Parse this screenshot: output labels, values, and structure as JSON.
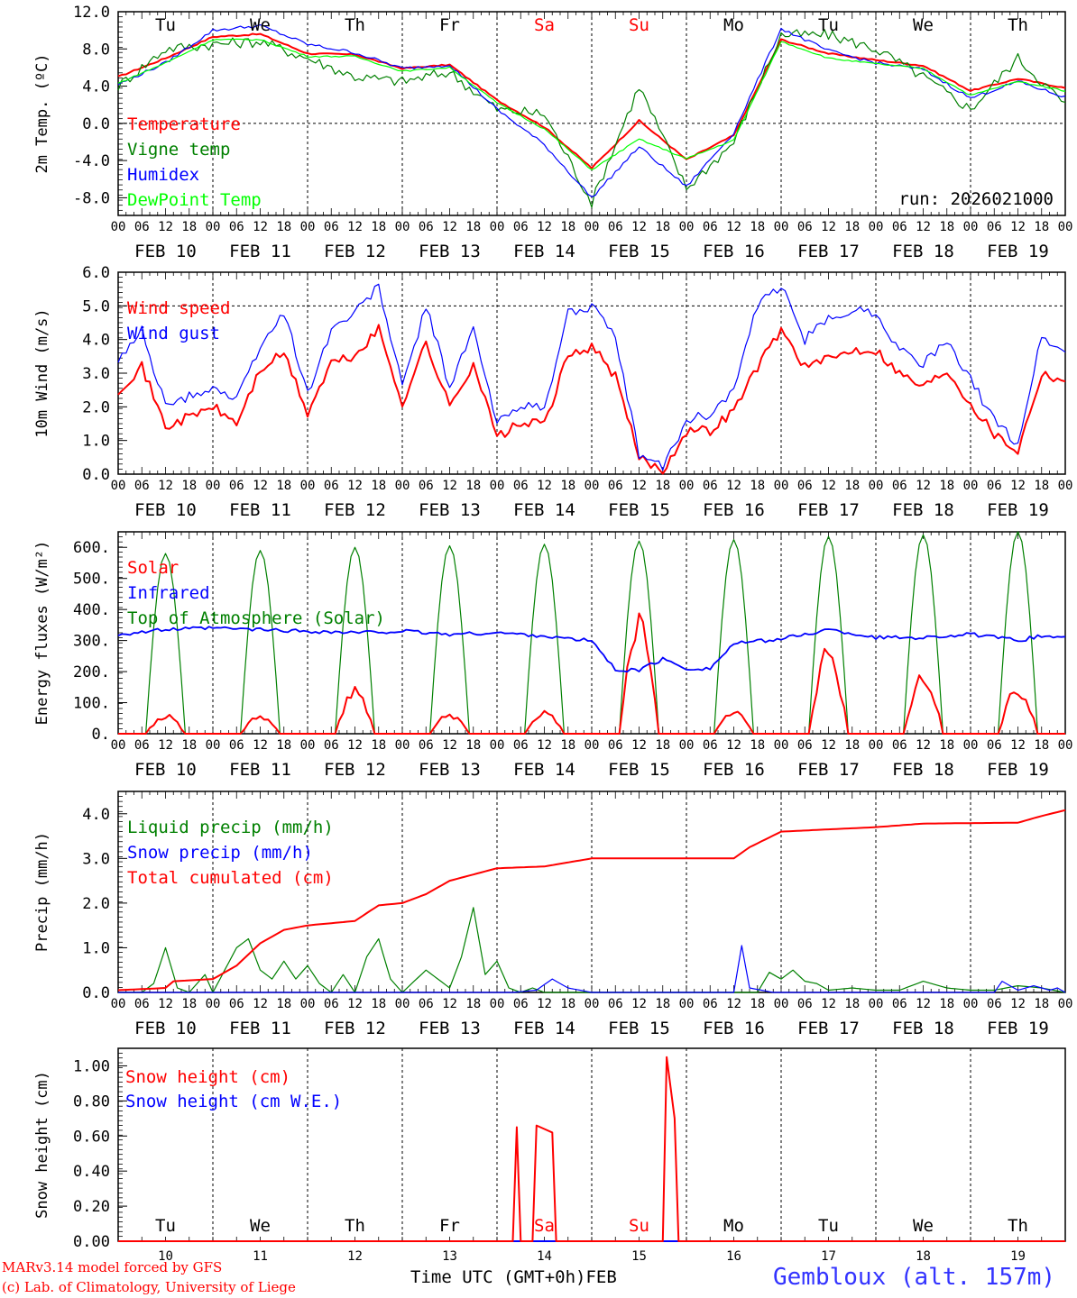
{
  "colors": {
    "red": "#ff0000",
    "green": "#008000",
    "blue": "#0000ff",
    "lightgreen": "#00ff00",
    "black": "#000000",
    "title": "#3333ff"
  },
  "axis": {
    "hour_ticks": [
      "00",
      "06",
      "12",
      "18"
    ],
    "final_hour": "00",
    "date_labels": [
      "FEB 10",
      "FEB 11",
      "FEB 12",
      "FEB 13",
      "FEB 14",
      "FEB 15",
      "FEB 16",
      "FEB 17",
      "FEB 18",
      "FEB 19"
    ],
    "day_names": [
      "Tu",
      "We",
      "Th",
      "Fr",
      "Sa",
      "Su",
      "Mo",
      "Tu",
      "We",
      "Th"
    ],
    "day_colors": [
      "black",
      "black",
      "black",
      "black",
      "red",
      "red",
      "black",
      "black",
      "black",
      "black"
    ],
    "day_numbers": [
      "10",
      "11",
      "12",
      "13",
      "14",
      "15",
      "16",
      "17",
      "18",
      "19"
    ]
  },
  "footer": {
    "model_line": "MARv3.14 model forced by GFS",
    "credit_line": "(c) Lab. of Climatology, University of Liege",
    "x_title": "Time UTC (GMT+0h)",
    "month": "FEB",
    "station": "Gembloux (alt. 157m)"
  },
  "chart_data": [
    {
      "type": "line",
      "id": "temp",
      "ylabel": "2m Temp. (ºC)",
      "ylim": [
        -9.9,
        12.0
      ],
      "yticks": [
        12.0,
        8.0,
        4.0,
        0.0,
        -4.0,
        -8.0
      ],
      "ytick_labels": [
        "12.0",
        "8.0",
        "4.0",
        "0.0",
        "-4.0",
        "-8.0"
      ],
      "dashed_at": 0.0,
      "annotation": "run: 2026021000",
      "x_hours": [
        0,
        12,
        24,
        36,
        48,
        60,
        72,
        84,
        96,
        108,
        120,
        132,
        144,
        156,
        168,
        180,
        192,
        204,
        216,
        228,
        240
      ],
      "series": [
        {
          "name": "Temperature",
          "color": "red",
          "values": [
            5.0,
            7.0,
            9.3,
            9.6,
            7.5,
            7.4,
            5.9,
            6.3,
            2.5,
            -0.4,
            -4.8,
            0.3,
            -3.9,
            -1.3,
            9.0,
            7.5,
            6.8,
            6.2,
            3.5,
            4.8,
            3.8
          ]
        },
        {
          "name": "Vigne temp",
          "color": "green",
          "values": [
            4.0,
            8.0,
            8.5,
            8.8,
            7.0,
            5.0,
            4.5,
            5.5,
            1.5,
            1.0,
            -8.5,
            4.0,
            -7.0,
            -2.0,
            9.5,
            9.5,
            8.0,
            5.0,
            1.5,
            7.0,
            2.0
          ]
        },
        {
          "name": "Humidex",
          "color": "blue",
          "values": [
            4.2,
            6.5,
            10.0,
            10.5,
            8.5,
            7.6,
            5.9,
            6.3,
            1.5,
            -2.3,
            -8.0,
            -2.5,
            -6.8,
            -1.0,
            10.2,
            7.8,
            6.5,
            5.8,
            2.7,
            4.5,
            2.8
          ]
        },
        {
          "name": "DewPoint Temp",
          "color": "lightgreen",
          "values": [
            4.3,
            6.5,
            9.0,
            9.0,
            7.2,
            7.2,
            5.6,
            6.0,
            2.2,
            -0.6,
            -5.0,
            -1.7,
            -3.8,
            -1.8,
            8.8,
            7.0,
            6.4,
            5.9,
            3.0,
            4.5,
            3.5
          ]
        }
      ]
    },
    {
      "type": "line",
      "id": "wind",
      "ylabel": "10m Wind (m/s)",
      "ylim": [
        0.0,
        6.0
      ],
      "yticks": [
        6.0,
        5.0,
        4.0,
        3.0,
        2.0,
        1.0,
        0.0
      ],
      "ytick_labels": [
        "6.0",
        "5.0",
        "4.0",
        "3.0",
        "2.0",
        "1.0",
        "0.0"
      ],
      "dashed_at": 5.0,
      "x_hours": [
        0,
        6,
        12,
        18,
        24,
        30,
        36,
        42,
        48,
        54,
        60,
        66,
        72,
        78,
        84,
        90,
        96,
        102,
        108,
        114,
        120,
        126,
        132,
        138,
        144,
        150,
        156,
        162,
        168,
        174,
        180,
        186,
        192,
        198,
        204,
        210,
        216,
        222,
        228,
        234,
        240
      ],
      "series": [
        {
          "name": "Wind speed",
          "color": "red",
          "values": [
            2.5,
            3.2,
            1.4,
            1.7,
            2.0,
            1.5,
            3.1,
            3.6,
            1.8,
            3.3,
            3.5,
            4.3,
            2.1,
            3.9,
            2.0,
            3.3,
            1.1,
            1.5,
            1.5,
            3.5,
            3.8,
            2.9,
            0.5,
            0.1,
            1.3,
            1.3,
            1.9,
            3.2,
            4.3,
            3.2,
            3.4,
            3.7,
            3.7,
            3.0,
            2.6,
            3.1,
            2.1,
            1.2,
            0.7,
            3.0,
            2.8
          ]
        },
        {
          "name": "Wind gust",
          "color": "blue",
          "values": [
            3.3,
            4.3,
            2.0,
            2.3,
            2.6,
            2.2,
            3.8,
            4.8,
            2.4,
            4.3,
            4.8,
            5.6,
            2.6,
            5.0,
            2.6,
            4.3,
            1.5,
            2.1,
            1.9,
            4.8,
            5.0,
            4.0,
            0.6,
            0.2,
            1.6,
            1.8,
            2.5,
            5.0,
            5.6,
            4.0,
            4.6,
            4.9,
            4.8,
            3.7,
            3.3,
            3.9,
            2.8,
            1.6,
            0.9,
            4.1,
            3.6
          ]
        }
      ]
    },
    {
      "type": "line",
      "id": "energy",
      "ylabel": "Energy fluxes (W/m²)",
      "ylim": [
        0,
        650
      ],
      "yticks": [
        600,
        500,
        400,
        300,
        200,
        100,
        0
      ],
      "ytick_labels": [
        "600.",
        "500.",
        "400.",
        "300.",
        "200.",
        "100.",
        "0."
      ],
      "series": [
        {
          "name": "Solar",
          "color": "red",
          "peaks": [
            65,
            65,
            155,
            70,
            80,
            410,
            80,
            290,
            210,
            165
          ]
        },
        {
          "name": "Infrared",
          "color": "blue",
          "x_hours": [
            0,
            12,
            24,
            36,
            48,
            60,
            72,
            84,
            96,
            108,
            114,
            120,
            126,
            132,
            138,
            144,
            150,
            156,
            168,
            180,
            192,
            204,
            216,
            228,
            234,
            240
          ],
          "values": [
            320,
            335,
            340,
            335,
            330,
            325,
            330,
            320,
            325,
            315,
            305,
            300,
            205,
            205,
            240,
            210,
            210,
            290,
            305,
            335,
            310,
            310,
            320,
            300,
            315,
            310
          ]
        },
        {
          "name": "Top of Atmosphere (Solar)",
          "color": "green",
          "peaks": [
            580,
            590,
            600,
            605,
            610,
            620,
            625,
            635,
            640,
            650
          ]
        }
      ]
    },
    {
      "type": "line",
      "id": "precip",
      "ylabel": "Precip (mm/h)",
      "ylim": [
        0.0,
        4.5
      ],
      "yticks": [
        4.0,
        3.0,
        2.0,
        1.0,
        0.0
      ],
      "ytick_labels": [
        "4.0",
        "3.0",
        "2.0",
        "1.0",
        "0.0"
      ],
      "series": [
        {
          "name": "Liquid precip (mm/h)",
          "color": "green",
          "x_hours": [
            0,
            6,
            9,
            12,
            15,
            18,
            22,
            24,
            27,
            30,
            33,
            36,
            39,
            42,
            45,
            48,
            51,
            54,
            57,
            60,
            63,
            66,
            69,
            72,
            78,
            84,
            87,
            90,
            93,
            96,
            99,
            102,
            105,
            108,
            132,
            150,
            156,
            162,
            165,
            168,
            171,
            174,
            177,
            180,
            186,
            192,
            198,
            204,
            210,
            216,
            222,
            228,
            234,
            240
          ],
          "values": [
            0.0,
            0.0,
            0.2,
            1.0,
            0.1,
            0.0,
            0.4,
            0.0,
            0.5,
            1.0,
            1.2,
            0.5,
            0.3,
            0.7,
            0.3,
            0.6,
            0.2,
            0.0,
            0.4,
            0.0,
            0.8,
            1.2,
            0.3,
            0.0,
            0.5,
            0.1,
            0.8,
            1.9,
            0.4,
            0.7,
            0.1,
            0.0,
            0.1,
            0.0,
            0.0,
            0.0,
            0.0,
            0.0,
            0.45,
            0.3,
            0.5,
            0.25,
            0.2,
            0.05,
            0.1,
            0.05,
            0.05,
            0.25,
            0.1,
            0.05,
            0.05,
            0.15,
            0.1,
            0.0
          ]
        },
        {
          "name": "Snow precip (mm/h)",
          "color": "blue",
          "x_hours": [
            0,
            100,
            106,
            110,
            114,
            120,
            152,
            156,
            158,
            160,
            166,
            200,
            216,
            222,
            224,
            228,
            232,
            236,
            238,
            240
          ],
          "values": [
            0.0,
            0.0,
            0.05,
            0.3,
            0.1,
            0.0,
            0.0,
            0.0,
            1.05,
            0.1,
            0.0,
            0.0,
            0.0,
            0.0,
            0.25,
            0.05,
            0.15,
            0.05,
            0.1,
            0.0
          ]
        },
        {
          "name": "Total cumulated (cm)",
          "color": "red",
          "x_hours": [
            0,
            12,
            14,
            24,
            30,
            36,
            42,
            48,
            60,
            66,
            72,
            78,
            84,
            96,
            108,
            120,
            144,
            156,
            160,
            168,
            192,
            204,
            228,
            234,
            240
          ],
          "values": [
            0.05,
            0.1,
            0.25,
            0.3,
            0.6,
            1.1,
            1.4,
            1.5,
            1.6,
            1.95,
            2.0,
            2.2,
            2.5,
            2.78,
            2.82,
            3.0,
            3.0,
            3.0,
            3.25,
            3.6,
            3.7,
            3.78,
            3.8,
            3.95,
            4.08
          ]
        }
      ]
    },
    {
      "type": "line",
      "id": "snow",
      "ylabel": "Snow height (cm)",
      "ylim": [
        0.0,
        1.1
      ],
      "yticks": [
        1.0,
        0.8,
        0.6,
        0.4,
        0.2,
        0.0
      ],
      "ytick_labels": [
        "1.00",
        "0.80",
        "0.60",
        "0.40",
        "0.20",
        "0.00"
      ],
      "series": [
        {
          "name": "Snow height (cm)",
          "color": "red",
          "x_hours": [
            0,
            100,
            101,
            102,
            105,
            106,
            108,
            110,
            111,
            138,
            139,
            141,
            142,
            240
          ],
          "values": [
            0,
            0,
            0.65,
            0,
            0,
            0.66,
            0.64,
            0.62,
            0,
            0,
            1.05,
            0.7,
            0,
            0
          ]
        },
        {
          "name": "Snow height (cm W.E.)",
          "color": "blue",
          "x_hours": [
            0,
            240
          ],
          "values": [
            0,
            0
          ]
        }
      ]
    }
  ]
}
